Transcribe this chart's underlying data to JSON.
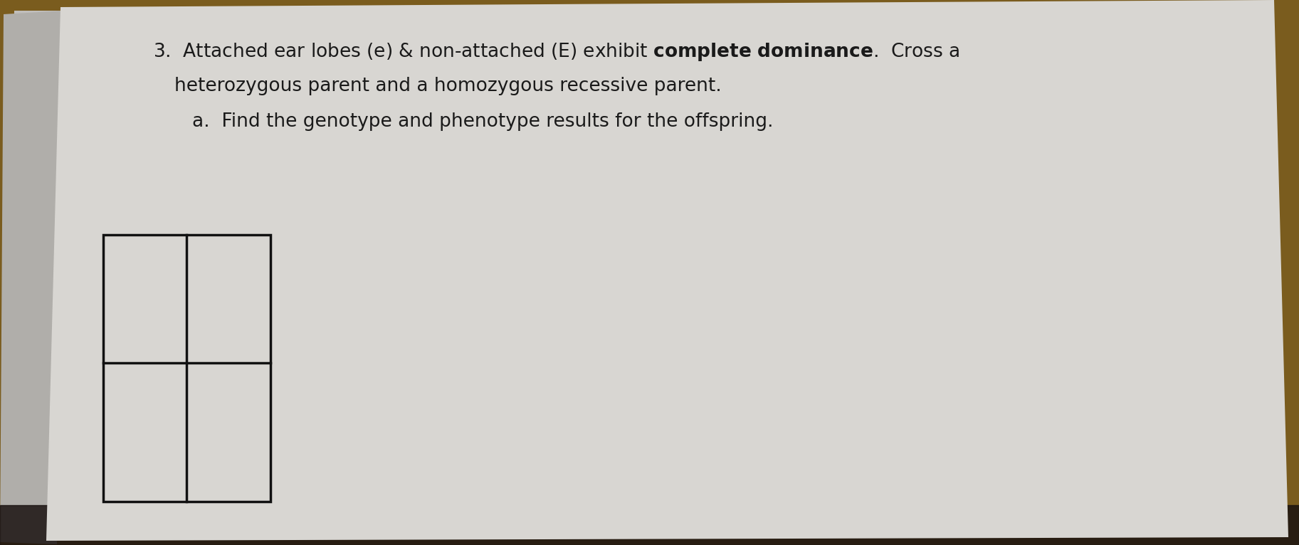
{
  "background_wood": "#7a5c1e",
  "paper_color": "#d8d6d2",
  "paper_color2": "#c8c6c2",
  "text_color": "#1a1a1a",
  "font_size_main": 19,
  "grid_color": "#111111",
  "grid_linewidth": 2.5,
  "line1_text": "3.  Attached ear lobes (e) & non-attached (E) exhibit ",
  "line1_bold": "complete dominance",
  "line1_suffix": ".  Cross a",
  "line2_text": "heterozygous parent and a homozygous recessive parent.",
  "line3_text": "a.  Find the genotype and phenotype results for the offspring."
}
